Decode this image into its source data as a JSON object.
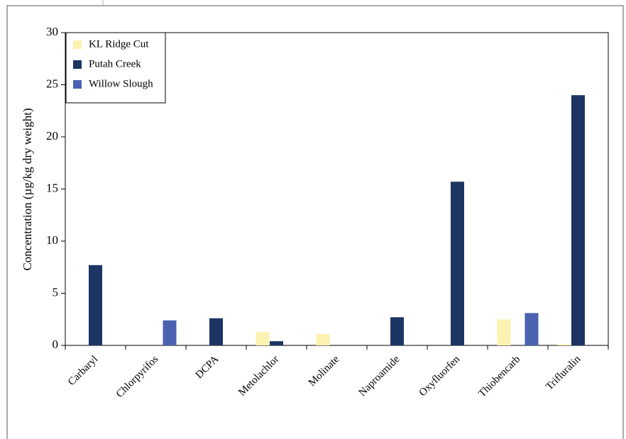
{
  "chart_data": {
    "type": "bar",
    "y_label": "Concentration (µg/kg dry weight)",
    "categories": [
      "Carbaryl",
      "Chlorpyrifos",
      "DCPA",
      "Metolachlor",
      "Molinate",
      "Naproamide",
      "Oxyfluorfen",
      "Thiobencarb",
      "Trifluralin"
    ],
    "series": [
      {
        "name": "KL Ridge Cut",
        "color": "#fcf2b0",
        "values": [
          null,
          null,
          null,
          1.3,
          1.1,
          null,
          null,
          2.5,
          0.1
        ]
      },
      {
        "name": "Putah Creek",
        "color": "#1c3563",
        "values": [
          7.7,
          null,
          2.6,
          0.4,
          null,
          2.7,
          15.7,
          null,
          24
        ]
      },
      {
        "name": "Willow Slough",
        "color": "#4a62b0",
        "values": [
          null,
          2.4,
          null,
          null,
          null,
          null,
          null,
          3.1,
          null
        ]
      }
    ],
    "ylim": [
      0,
      30
    ],
    "yticks": [
      0,
      5,
      10,
      15,
      20,
      25,
      30
    ],
    "grid": false,
    "legend": "upper left"
  }
}
